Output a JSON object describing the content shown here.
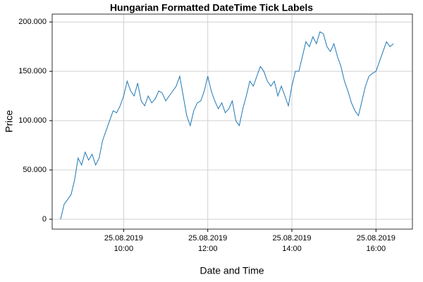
{
  "chart_data": {
    "type": "line",
    "title": "Hungarian Formatted DateTime Tick Labels",
    "x_label": "Date and Time",
    "y_label": "Price",
    "color": "#1f77b4",
    "grid": true,
    "xlim": [
      "2019-08-25T08:18",
      "2019-08-25T16:52"
    ],
    "xticks": [
      {
        "value": "2019-08-25T10:00",
        "label": "25.08.2019\n10:00"
      },
      {
        "value": "2019-08-25T12:00",
        "label": "25.08.2019\n12:00"
      },
      {
        "value": "2019-08-25T14:00",
        "label": "25.08.2019\n14:00"
      },
      {
        "value": "2019-08-25T16:00",
        "label": "25.08.2019\n16:00"
      }
    ],
    "ylim": [
      -10000,
      208000
    ],
    "yticks": [
      0,
      {
        "value": 50000,
        "label": "50.000"
      },
      {
        "value": 100000,
        "label": "100.000"
      },
      {
        "value": 150000,
        "label": "150.000"
      },
      {
        "value": 200000,
        "label": "200.000"
      }
    ],
    "x": [
      "2019-08-25T08:30",
      "2019-08-25T08:35",
      "2019-08-25T08:40",
      "2019-08-25T08:45",
      "2019-08-25T08:50",
      "2019-08-25T08:55",
      "2019-08-25T09:00",
      "2019-08-25T09:05",
      "2019-08-25T09:10",
      "2019-08-25T09:15",
      "2019-08-25T09:20",
      "2019-08-25T09:25",
      "2019-08-25T09:30",
      "2019-08-25T09:35",
      "2019-08-25T09:40",
      "2019-08-25T09:45",
      "2019-08-25T09:50",
      "2019-08-25T09:55",
      "2019-08-25T10:00",
      "2019-08-25T10:05",
      "2019-08-25T10:10",
      "2019-08-25T10:15",
      "2019-08-25T10:20",
      "2019-08-25T10:25",
      "2019-08-25T10:30",
      "2019-08-25T10:35",
      "2019-08-25T10:40",
      "2019-08-25T10:45",
      "2019-08-25T10:50",
      "2019-08-25T10:55",
      "2019-08-25T11:00",
      "2019-08-25T11:05",
      "2019-08-25T11:10",
      "2019-08-25T11:15",
      "2019-08-25T11:20",
      "2019-08-25T11:25",
      "2019-08-25T11:30",
      "2019-08-25T11:35",
      "2019-08-25T11:40",
      "2019-08-25T11:45",
      "2019-08-25T11:50",
      "2019-08-25T11:55",
      "2019-08-25T12:00",
      "2019-08-25T12:05",
      "2019-08-25T12:10",
      "2019-08-25T12:15",
      "2019-08-25T12:20",
      "2019-08-25T12:25",
      "2019-08-25T12:30",
      "2019-08-25T12:35",
      "2019-08-25T12:40",
      "2019-08-25T12:45",
      "2019-08-25T12:50",
      "2019-08-25T12:55",
      "2019-08-25T13:00",
      "2019-08-25T13:05",
      "2019-08-25T13:10",
      "2019-08-25T13:15",
      "2019-08-25T13:20",
      "2019-08-25T13:25",
      "2019-08-25T13:30",
      "2019-08-25T13:35",
      "2019-08-25T13:40",
      "2019-08-25T13:45",
      "2019-08-25T13:50",
      "2019-08-25T13:55",
      "2019-08-25T14:00",
      "2019-08-25T14:05",
      "2019-08-25T14:10",
      "2019-08-25T14:15",
      "2019-08-25T14:20",
      "2019-08-25T14:25",
      "2019-08-25T14:30",
      "2019-08-25T14:35",
      "2019-08-25T14:40",
      "2019-08-25T14:45",
      "2019-08-25T14:50",
      "2019-08-25T14:55",
      "2019-08-25T15:00",
      "2019-08-25T15:05",
      "2019-08-25T15:10",
      "2019-08-25T15:15",
      "2019-08-25T15:20",
      "2019-08-25T15:25",
      "2019-08-25T15:30",
      "2019-08-25T15:35",
      "2019-08-25T15:40",
      "2019-08-25T15:45",
      "2019-08-25T15:50",
      "2019-08-25T15:55",
      "2019-08-25T16:00",
      "2019-08-25T16:05",
      "2019-08-25T16:10",
      "2019-08-25T16:15",
      "2019-08-25T16:20",
      "2019-08-25T16:25"
    ],
    "values": [
      0,
      15000,
      20000,
      25000,
      40000,
      62000,
      55000,
      68000,
      60000,
      66000,
      55000,
      62000,
      80000,
      90000,
      100000,
      110000,
      108000,
      115000,
      125000,
      140000,
      130000,
      125000,
      138000,
      120000,
      115000,
      125000,
      118000,
      122000,
      130000,
      128000,
      120000,
      125000,
      130000,
      135000,
      145000,
      125000,
      105000,
      95000,
      110000,
      118000,
      120000,
      130000,
      145000,
      130000,
      120000,
      112000,
      118000,
      108000,
      112000,
      120000,
      100000,
      95000,
      112000,
      125000,
      140000,
      135000,
      145000,
      155000,
      150000,
      140000,
      135000,
      140000,
      125000,
      135000,
      125000,
      115000,
      135000,
      150000,
      150000,
      165000,
      180000,
      175000,
      185000,
      178000,
      190000,
      188000,
      175000,
      170000,
      178000,
      165000,
      155000,
      140000,
      130000,
      118000,
      110000,
      105000,
      120000,
      135000,
      145000,
      148000,
      150000,
      160000,
      170000,
      180000,
      175000,
      178000
    ]
  }
}
